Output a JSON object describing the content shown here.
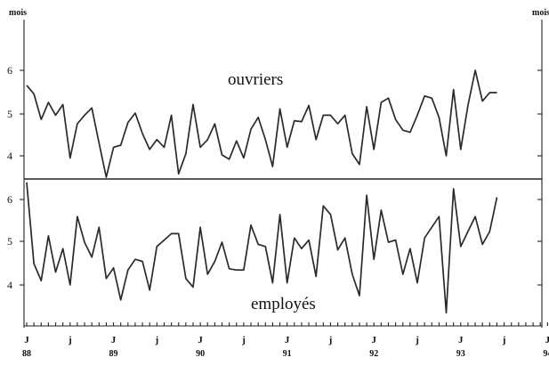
{
  "chart_data": {
    "type": "line",
    "y_unit_left": "mois",
    "y_unit_right": "mois",
    "x_tick_labels": [
      "J",
      "j",
      "J",
      "j",
      "J",
      "j",
      "J",
      "j",
      "J",
      "j",
      "J",
      "j",
      "J"
    ],
    "x_year_labels": [
      "88",
      "89",
      "90",
      "91",
      "92",
      "93",
      "94"
    ],
    "grid": false,
    "legend": "none",
    "panels": [
      {
        "name": "ouvriers",
        "label": "ouvriers",
        "ylim": [
          3.5,
          6.6
        ],
        "yticks": [
          "4",
          "5",
          "6"
        ],
        "series": [
          {
            "name": "ouvriers",
            "values": [
              5.65,
              5.45,
              4.85,
              5.25,
              4.95,
              5.2,
              3.95,
              4.75,
              4.95,
              5.12,
              4.3,
              3.5,
              4.2,
              4.25,
              4.78,
              5.0,
              4.52,
              4.15,
              4.38,
              4.2,
              4.95,
              3.58,
              4.05,
              5.2,
              4.2,
              4.38,
              4.75,
              4.02,
              3.92,
              4.35,
              3.95,
              4.62,
              4.9,
              4.38,
              3.75,
              5.1,
              4.2,
              4.82,
              4.8,
              5.18,
              4.38,
              4.95,
              4.95,
              4.75,
              4.95,
              4.05,
              3.8,
              5.15,
              4.15,
              5.25,
              5.35,
              4.85,
              4.6,
              4.55,
              4.95,
              5.4,
              5.35,
              4.9,
              4.0,
              5.55,
              4.15,
              5.18,
              6.0,
              5.28,
              5.48,
              5.48
            ]
          }
        ]
      },
      {
        "name": "employés",
        "label": "employés",
        "ylim": [
          3.0,
          6.4
        ],
        "yticks": [
          "4",
          "5",
          "6"
        ],
        "series": [
          {
            "name": "employés",
            "values": [
              6.4,
              4.5,
              4.1,
              5.15,
              4.3,
              4.85,
              4.0,
              5.6,
              5.0,
              4.65,
              5.35,
              4.15,
              4.4,
              3.65,
              4.35,
              4.6,
              4.55,
              3.88,
              4.9,
              5.05,
              5.2,
              5.2,
              4.15,
              3.95,
              5.35,
              4.25,
              4.55,
              5.0,
              4.38,
              4.35,
              4.35,
              5.4,
              4.95,
              4.9,
              4.05,
              5.65,
              4.05,
              5.1,
              4.85,
              5.05,
              4.2,
              5.85,
              5.65,
              4.82,
              5.1,
              4.25,
              3.75,
              6.1,
              4.6,
              5.75,
              5.0,
              5.05,
              4.25,
              4.85,
              4.05,
              5.1,
              5.35,
              5.6,
              3.35,
              6.25,
              4.9,
              5.25,
              5.6,
              4.95,
              5.25,
              6.05
            ]
          }
        ]
      }
    ]
  }
}
